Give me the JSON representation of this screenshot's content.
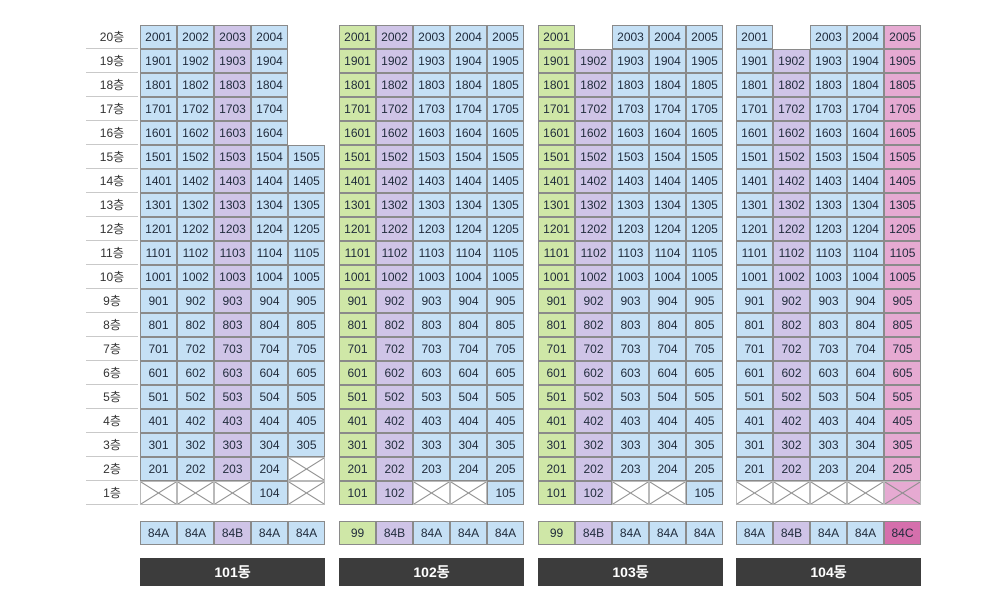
{
  "colors": {
    "84A": "#c5e0f5",
    "84B": "#cfc4e7",
    "84C": "#e6aad2",
    "99": "#cfe7a7",
    "84C_legend": "#d56fac"
  },
  "floor_labels": [
    "20층",
    "19층",
    "18층",
    "17층",
    "16층",
    "15층",
    "14층",
    "13층",
    "12층",
    "11층",
    "10층",
    "9층",
    "8층",
    "7층",
    "6층",
    "5층",
    "4층",
    "3층",
    "2층",
    "1층"
  ],
  "buildings": [
    {
      "label": "101동",
      "column_types": [
        "84A",
        "84A",
        "84B",
        "84A",
        "84A"
      ],
      "legend": [
        "84A",
        "84A",
        "84B",
        "84A",
        "84A"
      ],
      "floors": [
        {
          "floor": 20,
          "units": [
            "2001",
            "2002",
            "2003",
            "2004",
            null
          ]
        },
        {
          "floor": 19,
          "units": [
            "1901",
            "1902",
            "1903",
            "1904",
            null
          ]
        },
        {
          "floor": 18,
          "units": [
            "1801",
            "1802",
            "1803",
            "1804",
            null
          ]
        },
        {
          "floor": 17,
          "units": [
            "1701",
            "1702",
            "1703",
            "1704",
            null
          ]
        },
        {
          "floor": 16,
          "units": [
            "1601",
            "1602",
            "1603",
            "1604",
            null
          ]
        },
        {
          "floor": 15,
          "units": [
            "1501",
            "1502",
            "1503",
            "1504",
            "1505"
          ]
        },
        {
          "floor": 14,
          "units": [
            "1401",
            "1402",
            "1403",
            "1404",
            "1405"
          ]
        },
        {
          "floor": 13,
          "units": [
            "1301",
            "1302",
            "1303",
            "1304",
            "1305"
          ]
        },
        {
          "floor": 12,
          "units": [
            "1201",
            "1202",
            "1203",
            "1204",
            "1205"
          ]
        },
        {
          "floor": 11,
          "units": [
            "1101",
            "1102",
            "1103",
            "1104",
            "1105"
          ]
        },
        {
          "floor": 10,
          "units": [
            "1001",
            "1002",
            "1003",
            "1004",
            "1005"
          ]
        },
        {
          "floor": 9,
          "units": [
            "901",
            "902",
            "903",
            "904",
            "905"
          ]
        },
        {
          "floor": 8,
          "units": [
            "801",
            "802",
            "803",
            "804",
            "805"
          ]
        },
        {
          "floor": 7,
          "units": [
            "701",
            "702",
            "703",
            "704",
            "705"
          ]
        },
        {
          "floor": 6,
          "units": [
            "601",
            "602",
            "603",
            "604",
            "605"
          ]
        },
        {
          "floor": 5,
          "units": [
            "501",
            "502",
            "503",
            "504",
            "505"
          ]
        },
        {
          "floor": 4,
          "units": [
            "401",
            "402",
            "403",
            "404",
            "405"
          ]
        },
        {
          "floor": 3,
          "units": [
            "301",
            "302",
            "303",
            "304",
            "305"
          ]
        },
        {
          "floor": 2,
          "units": [
            "201",
            "202",
            "203",
            "204",
            "X"
          ]
        },
        {
          "floor": 1,
          "units": [
            "X",
            "X",
            "X",
            "104",
            "X"
          ]
        }
      ]
    },
    {
      "label": "102동",
      "column_types": [
        "99",
        "84B",
        "84A",
        "84A",
        "84A"
      ],
      "legend": [
        "99",
        "84B",
        "84A",
        "84A",
        "84A"
      ],
      "floors": [
        {
          "floor": 20,
          "units": [
            "2001",
            "2002",
            "2003",
            "2004",
            "2005"
          ]
        },
        {
          "floor": 19,
          "units": [
            "1901",
            "1902",
            "1903",
            "1904",
            "1905"
          ]
        },
        {
          "floor": 18,
          "units": [
            "1801",
            "1802",
            "1803",
            "1804",
            "1805"
          ]
        },
        {
          "floor": 17,
          "units": [
            "1701",
            "1702",
            "1703",
            "1704",
            "1705"
          ]
        },
        {
          "floor": 16,
          "units": [
            "1601",
            "1602",
            "1603",
            "1604",
            "1605"
          ]
        },
        {
          "floor": 15,
          "units": [
            "1501",
            "1502",
            "1503",
            "1504",
            "1505"
          ]
        },
        {
          "floor": 14,
          "units": [
            "1401",
            "1402",
            "1403",
            "1404",
            "1405"
          ]
        },
        {
          "floor": 13,
          "units": [
            "1301",
            "1302",
            "1303",
            "1304",
            "1305"
          ]
        },
        {
          "floor": 12,
          "units": [
            "1201",
            "1202",
            "1203",
            "1204",
            "1205"
          ]
        },
        {
          "floor": 11,
          "units": [
            "1101",
            "1102",
            "1103",
            "1104",
            "1105"
          ]
        },
        {
          "floor": 10,
          "units": [
            "1001",
            "1002",
            "1003",
            "1004",
            "1005"
          ]
        },
        {
          "floor": 9,
          "units": [
            "901",
            "902",
            "903",
            "904",
            "905"
          ]
        },
        {
          "floor": 8,
          "units": [
            "801",
            "802",
            "803",
            "804",
            "805"
          ]
        },
        {
          "floor": 7,
          "units": [
            "701",
            "702",
            "703",
            "704",
            "705"
          ]
        },
        {
          "floor": 6,
          "units": [
            "601",
            "602",
            "603",
            "604",
            "605"
          ]
        },
        {
          "floor": 5,
          "units": [
            "501",
            "502",
            "503",
            "504",
            "505"
          ]
        },
        {
          "floor": 4,
          "units": [
            "401",
            "402",
            "403",
            "404",
            "405"
          ]
        },
        {
          "floor": 3,
          "units": [
            "301",
            "302",
            "303",
            "304",
            "305"
          ]
        },
        {
          "floor": 2,
          "units": [
            "201",
            "202",
            "203",
            "204",
            "205"
          ]
        },
        {
          "floor": 1,
          "units": [
            "101",
            "102",
            "X",
            "X",
            "105"
          ]
        }
      ]
    },
    {
      "label": "103동",
      "column_types": [
        "99",
        "84B",
        "84A",
        "84A",
        "84A"
      ],
      "legend": [
        "99",
        "84B",
        "84A",
        "84A",
        "84A"
      ],
      "floors": [
        {
          "floor": 20,
          "units": [
            "2001",
            null,
            "2003",
            "2004",
            "2005"
          ]
        },
        {
          "floor": 19,
          "units": [
            "1901",
            "1902",
            "1903",
            "1904",
            "1905"
          ]
        },
        {
          "floor": 18,
          "units": [
            "1801",
            "1802",
            "1803",
            "1804",
            "1805"
          ]
        },
        {
          "floor": 17,
          "units": [
            "1701",
            "1702",
            "1703",
            "1704",
            "1705"
          ]
        },
        {
          "floor": 16,
          "units": [
            "1601",
            "1602",
            "1603",
            "1604",
            "1605"
          ]
        },
        {
          "floor": 15,
          "units": [
            "1501",
            "1502",
            "1503",
            "1504",
            "1505"
          ]
        },
        {
          "floor": 14,
          "units": [
            "1401",
            "1402",
            "1403",
            "1404",
            "1405"
          ]
        },
        {
          "floor": 13,
          "units": [
            "1301",
            "1302",
            "1303",
            "1304",
            "1305"
          ]
        },
        {
          "floor": 12,
          "units": [
            "1201",
            "1202",
            "1203",
            "1204",
            "1205"
          ]
        },
        {
          "floor": 11,
          "units": [
            "1101",
            "1102",
            "1103",
            "1104",
            "1105"
          ]
        },
        {
          "floor": 10,
          "units": [
            "1001",
            "1002",
            "1003",
            "1004",
            "1005"
          ]
        },
        {
          "floor": 9,
          "units": [
            "901",
            "902",
            "903",
            "904",
            "905"
          ]
        },
        {
          "floor": 8,
          "units": [
            "801",
            "802",
            "803",
            "804",
            "805"
          ]
        },
        {
          "floor": 7,
          "units": [
            "701",
            "702",
            "703",
            "704",
            "705"
          ]
        },
        {
          "floor": 6,
          "units": [
            "601",
            "602",
            "603",
            "604",
            "605"
          ]
        },
        {
          "floor": 5,
          "units": [
            "501",
            "502",
            "503",
            "504",
            "505"
          ]
        },
        {
          "floor": 4,
          "units": [
            "401",
            "402",
            "403",
            "404",
            "405"
          ]
        },
        {
          "floor": 3,
          "units": [
            "301",
            "302",
            "303",
            "304",
            "305"
          ]
        },
        {
          "floor": 2,
          "units": [
            "201",
            "202",
            "203",
            "204",
            "205"
          ]
        },
        {
          "floor": 1,
          "units": [
            "101",
            "102",
            "X",
            "X",
            "105"
          ]
        }
      ]
    },
    {
      "label": "104동",
      "column_types": [
        "84A",
        "84B",
        "84A",
        "84A",
        "84C"
      ],
      "legend": [
        "84A",
        "84B",
        "84A",
        "84A",
        "84C"
      ],
      "floors": [
        {
          "floor": 20,
          "units": [
            "2001",
            null,
            "2003",
            "2004",
            "2005"
          ]
        },
        {
          "floor": 19,
          "units": [
            "1901",
            "1902",
            "1903",
            "1904",
            "1905"
          ]
        },
        {
          "floor": 18,
          "units": [
            "1801",
            "1802",
            "1803",
            "1804",
            "1805"
          ]
        },
        {
          "floor": 17,
          "units": [
            "1701",
            "1702",
            "1703",
            "1704",
            "1705"
          ]
        },
        {
          "floor": 16,
          "units": [
            "1601",
            "1602",
            "1603",
            "1604",
            "1605"
          ]
        },
        {
          "floor": 15,
          "units": [
            "1501",
            "1502",
            "1503",
            "1504",
            "1505"
          ]
        },
        {
          "floor": 14,
          "units": [
            "1401",
            "1402",
            "1403",
            "1404",
            "1405"
          ]
        },
        {
          "floor": 13,
          "units": [
            "1301",
            "1302",
            "1303",
            "1304",
            "1305"
          ]
        },
        {
          "floor": 12,
          "units": [
            "1201",
            "1202",
            "1203",
            "1204",
            "1205"
          ]
        },
        {
          "floor": 11,
          "units": [
            "1101",
            "1102",
            "1103",
            "1104",
            "1105"
          ]
        },
        {
          "floor": 10,
          "units": [
            "1001",
            "1002",
            "1003",
            "1004",
            "1005"
          ]
        },
        {
          "floor": 9,
          "units": [
            "901",
            "902",
            "903",
            "904",
            "905"
          ]
        },
        {
          "floor": 8,
          "units": [
            "801",
            "802",
            "803",
            "804",
            "805"
          ]
        },
        {
          "floor": 7,
          "units": [
            "701",
            "702",
            "703",
            "704",
            "705"
          ]
        },
        {
          "floor": 6,
          "units": [
            "601",
            "602",
            "603",
            "604",
            "605"
          ]
        },
        {
          "floor": 5,
          "units": [
            "501",
            "502",
            "503",
            "504",
            "505"
          ]
        },
        {
          "floor": 4,
          "units": [
            "401",
            "402",
            "403",
            "404",
            "405"
          ]
        },
        {
          "floor": 3,
          "units": [
            "301",
            "302",
            "303",
            "304",
            "305"
          ]
        },
        {
          "floor": 2,
          "units": [
            "201",
            "202",
            "203",
            "204",
            "205"
          ]
        },
        {
          "floor": 1,
          "units": [
            "X",
            "X",
            "X",
            "X",
            "X"
          ]
        }
      ]
    }
  ]
}
